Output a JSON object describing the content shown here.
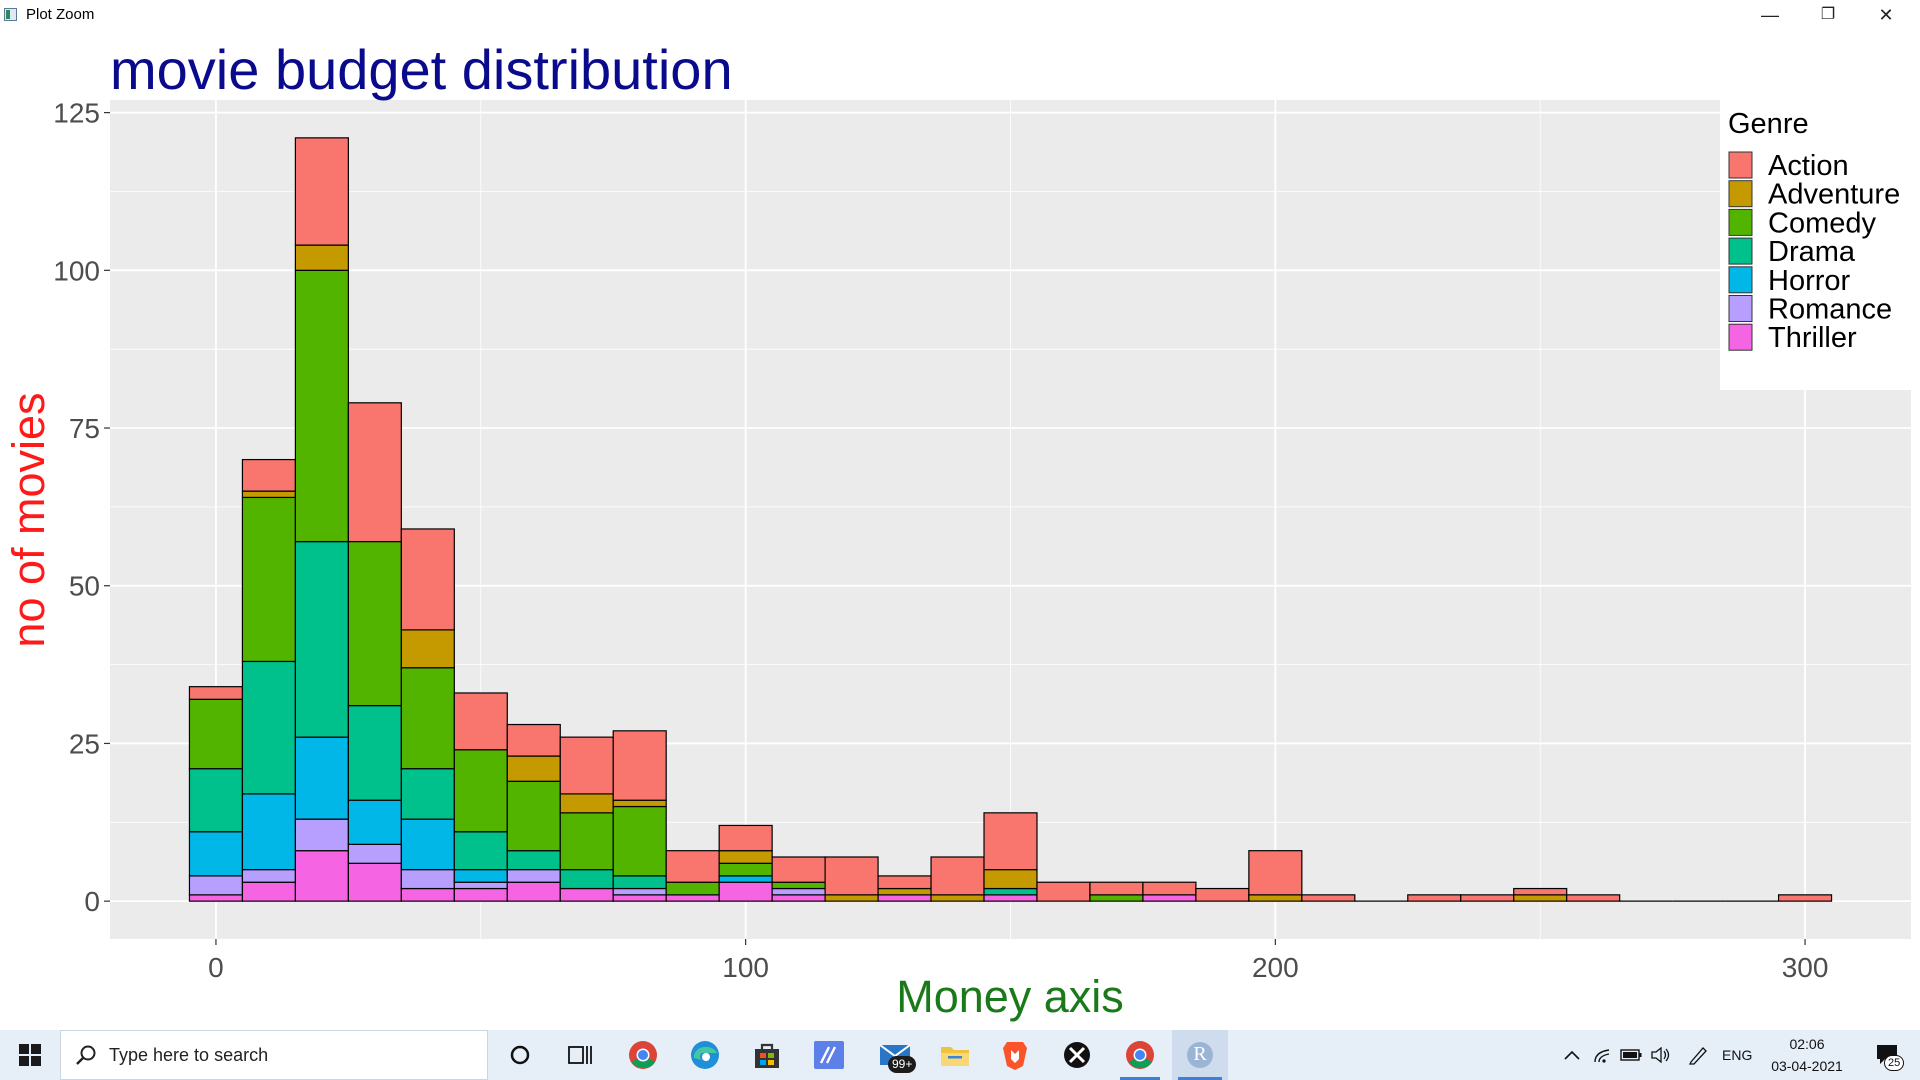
{
  "window": {
    "title": "Plot Zoom",
    "minimize_glyph": "—",
    "restore_glyph": "❐",
    "close_glyph": "✕"
  },
  "chart_data": {
    "type": "bar",
    "stacked": true,
    "title": "movie budget distribution",
    "xlabel": "Money axis",
    "ylabel": "no of movies",
    "bin_width": 10,
    "categories": [
      0,
      10,
      20,
      30,
      40,
      50,
      60,
      70,
      80,
      90,
      100,
      110,
      120,
      130,
      140,
      150,
      160,
      170,
      180,
      190,
      200,
      210,
      220,
      230,
      240,
      250,
      260,
      270,
      280,
      290,
      300
    ],
    "x_ticks": [
      0,
      100,
      200,
      300
    ],
    "y_ticks": [
      0,
      25,
      50,
      75,
      100,
      125
    ],
    "xlim": [
      -20,
      320
    ],
    "ylim": [
      -6,
      127
    ],
    "legend_title": "Genre",
    "legend_position": "top-right",
    "grid": true,
    "series": [
      {
        "name": "Thriller",
        "color": "#F564E3",
        "values": [
          1,
          3,
          8,
          6,
          2,
          2,
          3,
          2,
          1,
          1,
          3,
          1,
          0,
          1,
          0,
          1,
          0,
          0,
          1,
          0,
          0,
          0,
          0,
          0,
          0,
          0,
          0,
          0,
          0,
          0,
          0
        ]
      },
      {
        "name": "Romance",
        "color": "#B79FFF",
        "values": [
          3,
          2,
          5,
          3,
          3,
          1,
          2,
          0,
          1,
          0,
          0,
          1,
          0,
          0,
          0,
          0,
          0,
          0,
          0,
          0,
          0,
          0,
          0,
          0,
          0,
          0,
          0,
          0,
          0,
          0,
          0
        ]
      },
      {
        "name": "Horror",
        "color": "#00B7E8",
        "values": [
          7,
          12,
          13,
          7,
          8,
          2,
          0,
          0,
          0,
          0,
          1,
          0,
          0,
          0,
          0,
          0,
          0,
          0,
          0,
          0,
          0,
          0,
          0,
          0,
          0,
          0,
          0,
          0,
          0,
          0,
          0
        ]
      },
      {
        "name": "Drama",
        "color": "#00C08B",
        "values": [
          10,
          21,
          31,
          15,
          8,
          6,
          3,
          3,
          2,
          0,
          0,
          0,
          0,
          0,
          0,
          1,
          0,
          0,
          0,
          0,
          0,
          0,
          0,
          0,
          0,
          0,
          0,
          0,
          0,
          0,
          0
        ]
      },
      {
        "name": "Comedy",
        "color": "#53B400",
        "values": [
          11,
          26,
          43,
          26,
          16,
          13,
          11,
          9,
          11,
          2,
          2,
          1,
          0,
          0,
          0,
          0,
          0,
          1,
          0,
          0,
          0,
          0,
          0,
          0,
          0,
          0,
          0,
          0,
          0,
          0,
          0
        ]
      },
      {
        "name": "Adventure",
        "color": "#C49A00",
        "values": [
          0,
          1,
          4,
          0,
          6,
          0,
          4,
          3,
          1,
          0,
          2,
          0,
          1,
          1,
          1,
          3,
          0,
          0,
          0,
          0,
          1,
          0,
          0,
          0,
          0,
          1,
          0,
          0,
          0,
          0,
          0
        ]
      },
      {
        "name": "Action",
        "color": "#F8766D",
        "values": [
          2,
          5,
          17,
          22,
          16,
          9,
          5,
          9,
          11,
          5,
          4,
          4,
          6,
          2,
          6,
          9,
          3,
          2,
          2,
          2,
          7,
          1,
          0,
          1,
          1,
          1,
          1,
          0,
          0,
          0,
          1
        ]
      }
    ],
    "legend_order": [
      "Action",
      "Adventure",
      "Comedy",
      "Drama",
      "Horror",
      "Romance",
      "Thriller"
    ],
    "colors": {
      "title": "#0A0A8C",
      "xlabel": "#1A7A1A",
      "ylabel": "#FF1A1A",
      "panel": "#EBEBEB",
      "grid": "#FFFFFF",
      "tick_text": "#4D4D4D"
    }
  },
  "taskbar": {
    "search_placeholder": "Type here to search",
    "mail_badge": "99+",
    "language": "ENG",
    "time": "02:06",
    "date": "03-04-2021",
    "notification_count": "25",
    "r_app_letter": "R"
  }
}
